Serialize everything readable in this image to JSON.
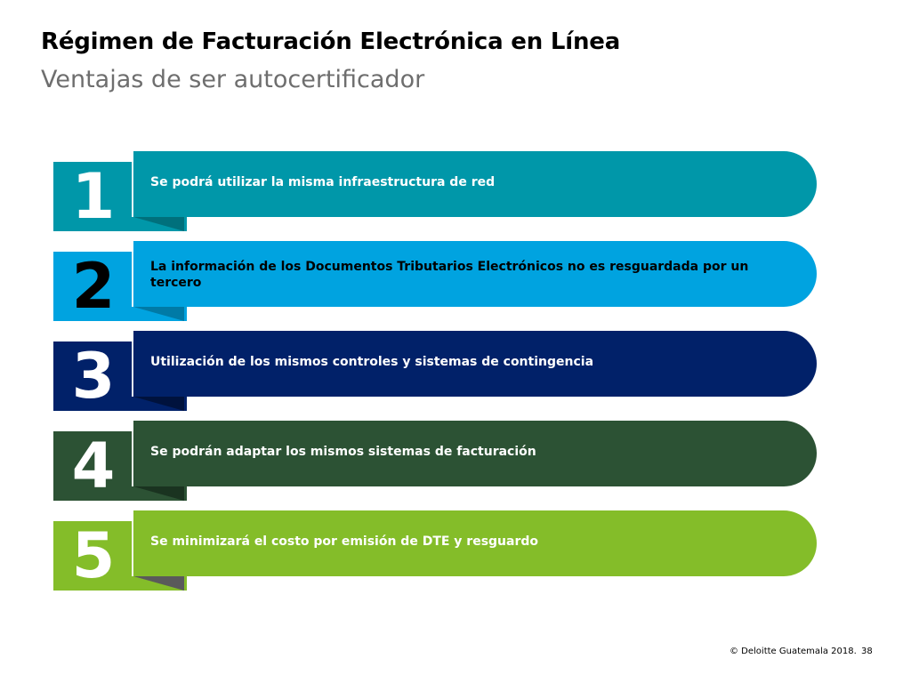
{
  "header": {
    "title": "Régimen de Facturación Electrónica en Línea",
    "subtitle": "Ventajas de ser autocertificador"
  },
  "items": [
    {
      "number": "1",
      "text": "Se podrá utilizar la misma infraestructura de red",
      "color": "#0097a9",
      "fold_color": "#00707c",
      "text_color": "#ffffff"
    },
    {
      "number": "2",
      "text": "La información de los Documentos Tributarios Electrónicos no es resguardada por un tercero",
      "color": "#00a3e0",
      "fold_color": "#007aa6",
      "text_color": "#000000"
    },
    {
      "number": "3",
      "text": "Utilización de los mismos controles  y sistemas de contingencia",
      "color": "#012169",
      "fold_color": "#00123d",
      "text_color": "#ffffff"
    },
    {
      "number": "4",
      "text": "Se podrán adaptar los mismos sistemas de facturación",
      "color": "#2c5234",
      "fold_color": "#1a3320",
      "text_color": "#ffffff"
    },
    {
      "number": "5",
      "text": "Se minimizará el costo por emisión de DTE y resguardo",
      "color": "#84bd29",
      "fold_color": "#5a5a5a",
      "text_color": "#ffffff"
    }
  ],
  "num_colors": [
    "#ffffff",
    "#000000",
    "#ffffff",
    "#ffffff",
    "#ffffff"
  ],
  "footer": {
    "copyright": "© Deloitte Guatemala 2018.",
    "page": "38"
  }
}
